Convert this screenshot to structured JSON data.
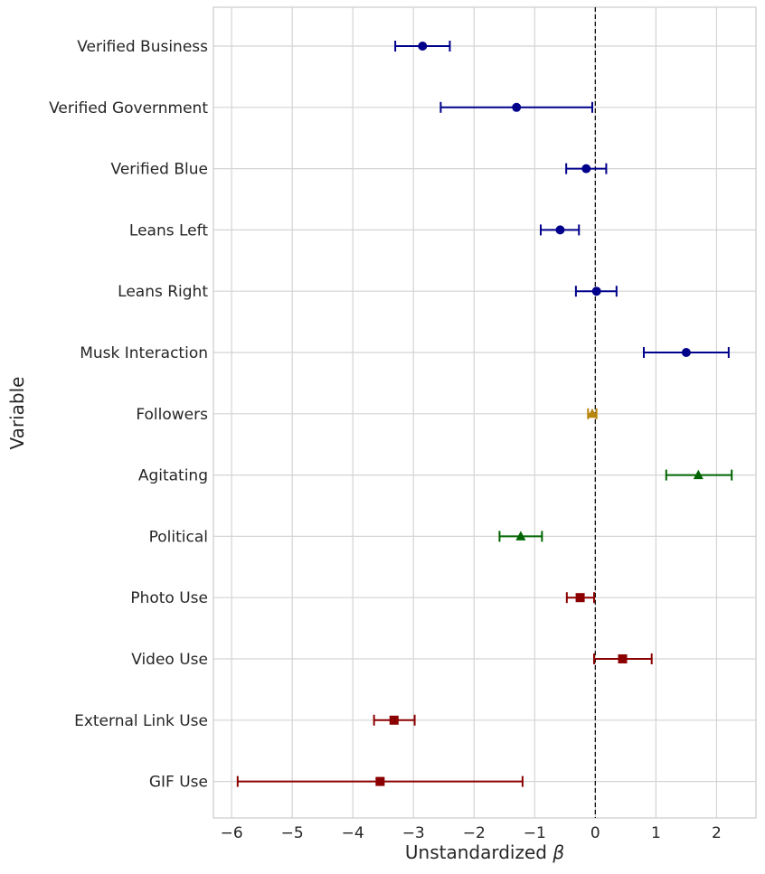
{
  "chart_data": {
    "type": "forest",
    "xlabel_text": "Unstandardized ",
    "xlabel_symbol": "β",
    "ylabel": "Variable",
    "xlim": [
      -6.3,
      2.65
    ],
    "xticks": [
      -6,
      -5,
      -4,
      -3,
      -2,
      -1,
      0,
      1,
      2
    ],
    "xtick_labels": [
      "−6",
      "−5",
      "−4",
      "−3",
      "−2",
      "−1",
      "0",
      "1",
      "2"
    ],
    "reference_line": 0,
    "grid": true,
    "rows": [
      {
        "label": "Verified Business",
        "estimate": -2.85,
        "lower": -3.3,
        "upper": -2.4,
        "group": "account"
      },
      {
        "label": "Verified Government",
        "estimate": -1.3,
        "lower": -2.55,
        "upper": -0.05,
        "group": "account"
      },
      {
        "label": "Verified Blue",
        "estimate": -0.15,
        "lower": -0.48,
        "upper": 0.18,
        "group": "account"
      },
      {
        "label": "Leans Left",
        "estimate": -0.58,
        "lower": -0.9,
        "upper": -0.27,
        "group": "account"
      },
      {
        "label": "Leans Right",
        "estimate": 0.02,
        "lower": -0.32,
        "upper": 0.35,
        "group": "account"
      },
      {
        "label": "Musk Interaction",
        "estimate": 1.5,
        "lower": 0.8,
        "upper": 2.2,
        "group": "account"
      },
      {
        "label": "Followers",
        "estimate": -0.05,
        "lower": -0.12,
        "upper": 0.02,
        "group": "followers"
      },
      {
        "label": "Agitating",
        "estimate": 1.7,
        "lower": 1.17,
        "upper": 2.25,
        "group": "content"
      },
      {
        "label": "Political",
        "estimate": -1.23,
        "lower": -1.58,
        "upper": -0.88,
        "group": "content"
      },
      {
        "label": "Photo Use",
        "estimate": -0.25,
        "lower": -0.47,
        "upper": -0.02,
        "group": "media"
      },
      {
        "label": "Video Use",
        "estimate": 0.45,
        "lower": -0.02,
        "upper": 0.93,
        "group": "media"
      },
      {
        "label": "External Link Use",
        "estimate": -3.32,
        "lower": -3.65,
        "upper": -2.98,
        "group": "media"
      },
      {
        "label": "GIF Use",
        "estimate": -3.55,
        "lower": -5.9,
        "upper": -1.2,
        "group": "media"
      }
    ],
    "groups": {
      "account": {
        "color": "#00008b",
        "marker": "circle"
      },
      "followers": {
        "color": "#b8860b",
        "marker": "triangle"
      },
      "content": {
        "color": "#006400",
        "marker": "triangle"
      },
      "media": {
        "color": "#8b0000",
        "marker": "square"
      }
    }
  }
}
